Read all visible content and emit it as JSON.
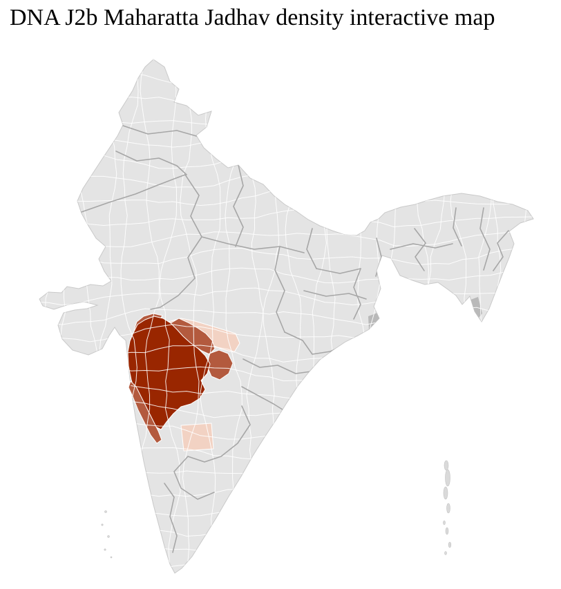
{
  "page": {
    "title": "DNA J2b Maharatta Jadhav density interactive map"
  },
  "map": {
    "land_fill": "#e4e4e4",
    "coast_stroke": "#c9c9c9",
    "district_line_color": "#ffffff",
    "state_line_color": "#a6a6a6",
    "island_fill": "#dadada",
    "island_stroke": "#c2c2c2",
    "shade_fill": "#b9b9b9",
    "density_regions": [
      {
        "id": "core",
        "color": "#992600"
      },
      {
        "id": "mid",
        "color": "#b35a3e"
      },
      {
        "id": "low",
        "color": "#f2d2c3"
      }
    ]
  }
}
